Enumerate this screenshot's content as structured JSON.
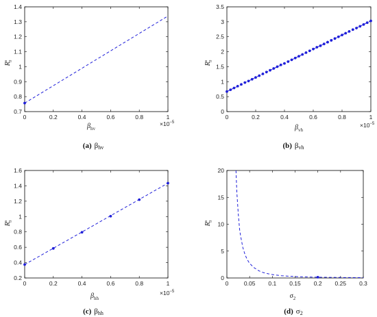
{
  "chart_data": [
    {
      "id": "a",
      "type": "line",
      "caption_id": "(a)",
      "caption_text": "β",
      "caption_sub": "hv",
      "xlabel": "β",
      "xlabel_sub": "hv",
      "ylabel": "R",
      "ylabel_sub": "0",
      "ylabel_sup": "s",
      "x_multiplier": "×10",
      "x_multiplier_exp": "−5",
      "xlim": [
        0,
        1
      ],
      "ylim": [
        0.7,
        1.5
      ],
      "xticks": [
        "0",
        "0.2",
        "0.4",
        "0.6",
        "0.8",
        "1"
      ],
      "yticks": [
        "0.7",
        "0.8",
        "0.9",
        "1",
        "1.1",
        "1.2",
        "1.3",
        "1.4"
      ],
      "series": [
        {
          "style": "dashed",
          "x": [
            0,
            1
          ],
          "y": [
            0.765,
            1.43
          ]
        }
      ],
      "markers": {
        "x": [
          0
        ],
        "y": [
          0.765
        ]
      }
    },
    {
      "id": "b",
      "type": "line",
      "caption_id": "(b)",
      "caption_text": "β",
      "caption_sub": "vh",
      "xlabel": "β",
      "xlabel_sub": "vh",
      "ylabel": "R",
      "ylabel_sub": "0",
      "ylabel_sup": "s",
      "x_multiplier": "×10",
      "x_multiplier_exp": "−5",
      "xlim": [
        0,
        1
      ],
      "ylim": [
        0,
        3.5
      ],
      "xticks": [
        "0",
        "0.2",
        "0.4",
        "0.6",
        "0.8",
        "1"
      ],
      "yticks": [
        "0",
        "0.5",
        "1",
        "1.5",
        "2",
        "2.5",
        "3",
        "3.5"
      ],
      "series": [
        {
          "style": "dashed",
          "x": [
            0,
            1
          ],
          "y": [
            0.67,
            3.03
          ]
        }
      ],
      "markers": {
        "x": [
          0,
          0.025,
          0.05,
          0.075,
          0.1,
          0.125,
          0.15,
          0.175,
          0.2,
          0.225,
          0.25,
          0.275,
          0.3,
          0.325,
          0.35,
          0.375,
          0.4,
          0.425,
          0.45,
          0.475,
          0.5,
          0.525,
          0.55,
          0.575,
          0.6,
          0.625,
          0.65,
          0.675,
          0.7,
          0.725,
          0.75,
          0.775,
          0.8,
          0.825,
          0.85,
          0.875,
          0.9,
          0.925,
          0.95,
          0.975,
          1
        ],
        "y": [
          0.67,
          0.73,
          0.79,
          0.85,
          0.91,
          0.97,
          1.02,
          1.08,
          1.14,
          1.2,
          1.26,
          1.32,
          1.38,
          1.44,
          1.5,
          1.56,
          1.61,
          1.67,
          1.73,
          1.79,
          1.85,
          1.91,
          1.97,
          2.03,
          2.09,
          2.15,
          2.2,
          2.26,
          2.32,
          2.38,
          2.44,
          2.5,
          2.56,
          2.62,
          2.68,
          2.74,
          2.79,
          2.85,
          2.91,
          2.97,
          3.03
        ]
      }
    },
    {
      "id": "c",
      "type": "line",
      "caption_id": "(c)",
      "caption_text": "β",
      "caption_sub": "hh",
      "xlabel": "β",
      "xlabel_sub": "hh",
      "ylabel": "R",
      "ylabel_sub": "0",
      "ylabel_sup": "s",
      "x_multiplier": "×10",
      "x_multiplier_exp": "−5",
      "xlim": [
        0,
        1
      ],
      "ylim": [
        0.2,
        1.6
      ],
      "xticks": [
        "0",
        "0.2",
        "0.4",
        "0.6",
        "0.8",
        "1"
      ],
      "yticks": [
        "0.2",
        "0.4",
        "0.6",
        "0.8",
        "1",
        "1.2",
        "1.4",
        "1.6"
      ],
      "series": [
        {
          "style": "dashed",
          "x": [
            0,
            1
          ],
          "y": [
            0.375,
            1.435
          ]
        }
      ],
      "markers": {
        "x": [
          0,
          0.2,
          0.4,
          0.6,
          0.8,
          1
        ],
        "y": [
          0.375,
          0.585,
          0.795,
          1.005,
          1.22,
          1.435
        ]
      }
    },
    {
      "id": "d",
      "type": "line",
      "caption_id": "(d)",
      "caption_text": "σ",
      "caption_sub": "2",
      "xlabel": "σ",
      "xlabel_sub": "2",
      "ylabel": "R",
      "ylabel_sub": "0",
      "ylabel_sup": "s",
      "x_multiplier": "",
      "x_multiplier_exp": "",
      "xlim": [
        0,
        0.3
      ],
      "ylim": [
        0,
        20
      ],
      "xticks": [
        "0",
        "0.05",
        "0.1",
        "0.15",
        "0.2",
        "0.25",
        "0.3"
      ],
      "yticks": [
        "0",
        "5",
        "10",
        "15",
        "20"
      ],
      "series": [
        {
          "style": "dashed",
          "x": [
            0.02,
            0.022,
            0.025,
            0.028,
            0.03,
            0.035,
            0.04,
            0.045,
            0.05,
            0.06,
            0.07,
            0.08,
            0.09,
            0.1,
            0.12,
            0.15,
            0.18,
            0.2,
            0.25,
            0.3
          ],
          "y": [
            20,
            15.8,
            12.0,
            9.0,
            7.9,
            5.7,
            4.3,
            3.4,
            2.7,
            1.9,
            1.35,
            1.0,
            0.8,
            0.63,
            0.42,
            0.26,
            0.18,
            0.14,
            0.09,
            0.06
          ]
        }
      ],
      "markers": {
        "x": [
          0.2
        ],
        "y": [
          0.14
        ]
      }
    }
  ],
  "colors": {
    "line": "#1f1fd9",
    "axis": "#000000"
  }
}
